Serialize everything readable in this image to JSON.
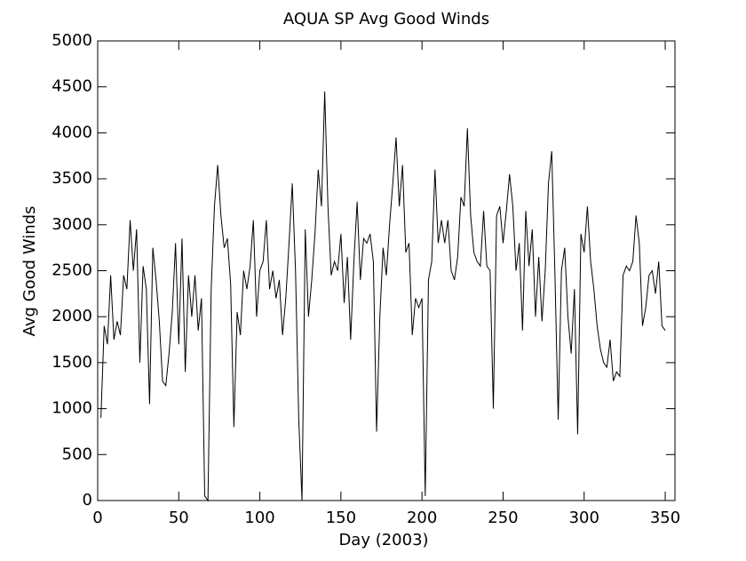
{
  "chart_data": {
    "type": "line",
    "title": "AQUA SP Avg Good Winds",
    "xlabel": "Day (2003)",
    "ylabel": "Avg Good Winds",
    "color": "#000000",
    "x": [
      2,
      4,
      6,
      8,
      10,
      12,
      14,
      16,
      18,
      20,
      22,
      24,
      26,
      28,
      30,
      32,
      34,
      36,
      38,
      40,
      42,
      44,
      46,
      48,
      50,
      52,
      54,
      56,
      58,
      60,
      62,
      64,
      66,
      68,
      70,
      72,
      74,
      76,
      78,
      80,
      82,
      84,
      86,
      88,
      90,
      92,
      94,
      96,
      98,
      100,
      102,
      104,
      106,
      108,
      110,
      112,
      114,
      116,
      118,
      120,
      122,
      124,
      126,
      128,
      130,
      132,
      134,
      136,
      138,
      140,
      142,
      144,
      146,
      148,
      150,
      152,
      154,
      156,
      158,
      160,
      162,
      164,
      166,
      168,
      170,
      172,
      174,
      176,
      178,
      180,
      182,
      184,
      186,
      188,
      190,
      192,
      194,
      196,
      198,
      200,
      202,
      204,
      206,
      208,
      210,
      212,
      214,
      216,
      218,
      220,
      222,
      224,
      226,
      228,
      230,
      232,
      234,
      236,
      238,
      240,
      242,
      244,
      246,
      248,
      250,
      252,
      254,
      256,
      258,
      260,
      262,
      264,
      266,
      268,
      270,
      272,
      274,
      276,
      278,
      280,
      282,
      284,
      286,
      288,
      290,
      292,
      294,
      296,
      298,
      300,
      302,
      304,
      306,
      308,
      310,
      312,
      314,
      316,
      318,
      320,
      322,
      324,
      326,
      328,
      330,
      332,
      334,
      336,
      338,
      340,
      342,
      344,
      346,
      348,
      350
    ],
    "values": [
      900,
      1900,
      1700,
      2450,
      1750,
      1950,
      1800,
      2450,
      2300,
      3050,
      2500,
      2950,
      1500,
      2550,
      2300,
      1050,
      2750,
      2400,
      1950,
      1300,
      1250,
      1600,
      2050,
      2800,
      1700,
      2850,
      1400,
      2450,
      2000,
      2450,
      1850,
      2200,
      50,
      0,
      2300,
      3200,
      3650,
      3100,
      2750,
      2850,
      2350,
      800,
      2050,
      1800,
      2500,
      2300,
      2550,
      3050,
      2000,
      2500,
      2600,
      3050,
      2300,
      2500,
      2200,
      2400,
      1800,
      2200,
      2800,
      3450,
      2500,
      880,
      0,
      2950,
      2000,
      2400,
      2900,
      3600,
      3200,
      4450,
      3200,
      2450,
      2600,
      2500,
      2900,
      2150,
      2650,
      1750,
      2600,
      3250,
      2400,
      2850,
      2800,
      2900,
      2600,
      750,
      2000,
      2750,
      2450,
      3000,
      3450,
      3950,
      3200,
      3650,
      2700,
      2800,
      1800,
      2200,
      2100,
      2200,
      50,
      2400,
      2600,
      3600,
      2800,
      3050,
      2800,
      3050,
      2500,
      2400,
      2650,
      3300,
      3200,
      4050,
      3100,
      2700,
      2600,
      2550,
      3150,
      2550,
      2500,
      1000,
      3100,
      3200,
      2800,
      3150,
      3550,
      3200,
      2500,
      2800,
      1850,
      3150,
      2550,
      2950,
      2000,
      2650,
      1950,
      2500,
      3450,
      3800,
      2450,
      880,
      2500,
      2750,
      2000,
      1600,
      2300,
      720,
      2900,
      2700,
      3200,
      2600,
      2300,
      1900,
      1650,
      1500,
      1450,
      1750,
      1300,
      1400,
      1350,
      2450,
      2550,
      2500,
      2600,
      3100,
      2800,
      1900,
      2100,
      2450,
      2500,
      2250,
      2600,
      1900,
      1850
    ],
    "xlim": [
      0,
      356
    ],
    "ylim": [
      0,
      5000
    ],
    "xticks": [
      0,
      50,
      100,
      150,
      200,
      250,
      300,
      350
    ],
    "yticks": [
      0,
      500,
      1000,
      1500,
      2000,
      2500,
      3000,
      3500,
      4000,
      4500,
      5000
    ]
  }
}
